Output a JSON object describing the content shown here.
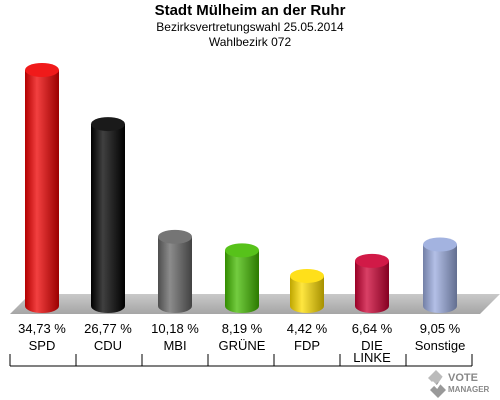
{
  "header": {
    "title": "Stadt Mülheim an der Ruhr",
    "subtitle1": "Bezirksvertretungswahl 25.05.2014",
    "subtitle2": "Wahlbezirk 072"
  },
  "chart_data": {
    "type": "bar",
    "title": "Stadt Mülheim an der Ruhr",
    "categories": [
      "SPD",
      "CDU",
      "MBI",
      "GRÜNE",
      "FDP",
      "DIE LINKE",
      "Sonstige"
    ],
    "values": [
      34.73,
      26.77,
      10.18,
      8.19,
      4.42,
      6.64,
      9.05
    ],
    "value_labels": [
      "34,73 %",
      "26,77 %",
      "10,18 %",
      "8,19 %",
      "4,42 %",
      "6,64 %",
      "9,05 %"
    ],
    "colors": [
      "#ee0000",
      "#000000",
      "#666666",
      "#44bb00",
      "#ffdd00",
      "#cc0033",
      "#99aadd"
    ],
    "grid": false,
    "legend": "none"
  },
  "logo": {
    "line1": "VOTE",
    "line2": "MANAGER"
  }
}
